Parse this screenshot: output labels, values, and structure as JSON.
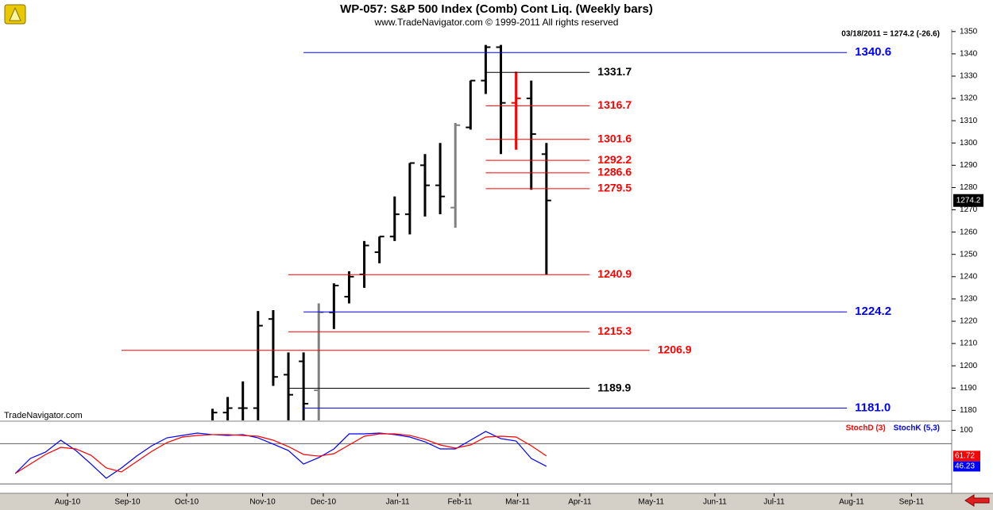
{
  "chart_data": [
    {
      "type": "ohlc",
      "title": "WP-057:  S&P 500 Index (Comb) Cont Liq.  (Weekly bars)",
      "subtitle": "www.TradeNavigator.com © 1999-2011 All rights reserved",
      "annotation": "03/18/2011 = 1274.2 (-26.6)",
      "watermark": "TradeNavigator.com",
      "xlim": [
        0,
        62.7
      ],
      "ylim": [
        1175.5,
        1351
      ],
      "yticks": [
        1180,
        1190,
        1200,
        1210,
        1220,
        1230,
        1240,
        1250,
        1260,
        1270,
        1280,
        1290,
        1300,
        1310,
        1320,
        1330,
        1340,
        1350
      ],
      "x": [
        14,
        15,
        16,
        17,
        18,
        19,
        20,
        21,
        22,
        23,
        24,
        25,
        26,
        27,
        28,
        29,
        30,
        31,
        32,
        33,
        34,
        35,
        36
      ],
      "open": [
        1175,
        1179,
        1181,
        1181,
        1221,
        1196,
        1202,
        1189,
        1224,
        1231,
        1241,
        1251,
        1258,
        1268,
        1290,
        1281,
        1271,
        1307,
        1328,
        1343,
        1318,
        1320,
        1295
      ],
      "high": [
        1180.7,
        1186,
        1193,
        1224.6,
        1225,
        1206,
        1206,
        1228,
        1237,
        1242.4,
        1256,
        1258,
        1276,
        1291,
        1295,
        1300,
        1309,
        1328,
        1344,
        1344,
        1332,
        1328,
        1300
      ],
      "low": [
        1173,
        1174,
        1175,
        1175.5,
        1191,
        1175,
        1173,
        1173,
        1216.5,
        1228,
        1235,
        1246,
        1256,
        1259,
        1267,
        1268,
        1262,
        1306,
        1322,
        1295,
        1297,
        1279,
        1241
      ],
      "close": [
        1179,
        1181,
        1181,
        1218,
        1195,
        1187,
        1183,
        1224,
        1236,
        1240,
        1254,
        1258,
        1268,
        1291,
        1281,
        1276,
        1308,
        1328,
        1343,
        1318,
        1320,
        1304,
        1274.2
      ],
      "colors": [
        "#000000",
        "#000000",
        "#000000",
        "#000000",
        "#000000",
        "#000000",
        "#000000",
        "#808080",
        "#000000",
        "#000000",
        "#000000",
        "#000000",
        "#000000",
        "#000000",
        "#000000",
        "#000000",
        "#808080",
        "#000000",
        "#000000",
        "#000000",
        "#ff0000",
        "#000000",
        "#000000"
      ],
      "levels": [
        {
          "value": 1340.6,
          "color": "#0000ff",
          "from": 20,
          "to": 55.8
        },
        {
          "value": 1331.7,
          "color": "#000000",
          "from": 32,
          "to": 38.85
        },
        {
          "value": 1316.7,
          "color": "#ff0000",
          "from": 32,
          "to": 38.85
        },
        {
          "value": 1301.6,
          "color": "#ff0000",
          "from": 32,
          "to": 38.85
        },
        {
          "value": 1292.2,
          "color": "#ff0000",
          "from": 32,
          "to": 38.85
        },
        {
          "value": 1286.6,
          "color": "#ff0000",
          "from": 32,
          "to": 38.85
        },
        {
          "value": 1279.5,
          "color": "#ff0000",
          "from": 32,
          "to": 38.85
        },
        {
          "value": 1240.9,
          "color": "#ff0000",
          "from": 19,
          "to": 38.85
        },
        {
          "value": 1224.2,
          "color": "#0000ff",
          "from": 20,
          "to": 55.8
        },
        {
          "value": 1215.3,
          "color": "#ff0000",
          "from": 19,
          "to": 38.85
        },
        {
          "value": 1206.9,
          "color": "#ff0000",
          "from": 8,
          "to": 42.8
        },
        {
          "value": 1189.9,
          "color": "#000000",
          "from": 19,
          "to": 38.85
        },
        {
          "value": 1181,
          "label": "1181.0",
          "color": "#0000ff",
          "from": 20,
          "to": 55.8
        }
      ]
    },
    {
      "type": "line",
      "xlim": [
        0,
        62.7
      ],
      "ylim": [
        6,
        110
      ],
      "yticks": [
        100
      ],
      "ref_lines": [
        80,
        20
      ],
      "xticks": [
        {
          "value": 4.45,
          "label": "Aug-10"
        },
        {
          "value": 8.4,
          "label": "Sep-10"
        },
        {
          "value": 12.3,
          "label": "Oct-10"
        },
        {
          "value": 17.3,
          "label": "Nov-10"
        },
        {
          "value": 21.3,
          "label": "Dec-10"
        },
        {
          "value": 26.2,
          "label": "Jan-11"
        },
        {
          "value": 30.3,
          "label": "Feb-11"
        },
        {
          "value": 34.1,
          "label": "Mar-11"
        },
        {
          "value": 38.2,
          "label": "Apr-11"
        },
        {
          "value": 42.9,
          "label": "May-11"
        },
        {
          "value": 47.1,
          "label": "Jun-11"
        },
        {
          "value": 51,
          "label": "Jul-11"
        },
        {
          "value": 56.1,
          "label": "Aug-11"
        },
        {
          "value": 60.05,
          "label": "Sep-11"
        }
      ],
      "x": [
        1,
        2,
        3,
        4,
        5,
        6,
        7,
        8,
        9,
        10,
        11,
        12,
        13,
        14,
        15,
        16,
        17,
        18,
        19,
        20,
        21,
        22,
        23,
        24,
        25,
        26,
        27,
        28,
        29,
        30,
        31,
        32,
        33,
        34,
        35,
        36
      ],
      "series": [
        {
          "name": "StochD (3)",
          "color": "#ff0000",
          "values": [
            35.5,
            49.7,
            63.9,
            74.5,
            72.2,
            62.7,
            43.8,
            37.9,
            53.3,
            68.6,
            81.6,
            89.9,
            92.3,
            93.5,
            93.5,
            92.3,
            91.1,
            85.2,
            75.7,
            63.9,
            61.5,
            65.1,
            78.1,
            91.1,
            94.6,
            94.6,
            92.3,
            86.4,
            78.1,
            73.4,
            78.1,
            89.9,
            91.1,
            89.9,
            76.9,
            61.72
          ]
        },
        {
          "name": "StochK (5,3)",
          "color": "#0000ff",
          "values": [
            35.5,
            58,
            67.5,
            85.2,
            69.8,
            49.7,
            28.5,
            43.8,
            61.5,
            76.9,
            88.7,
            92.3,
            95.8,
            93.5,
            92.3,
            93.5,
            88.7,
            79.3,
            69.8,
            49.7,
            59.2,
            72.2,
            94.6,
            94.6,
            95.8,
            93.5,
            89.9,
            82.8,
            72.2,
            72.2,
            85.2,
            98.2,
            87.5,
            84,
            58,
            46.23
          ]
        }
      ]
    }
  ]
}
